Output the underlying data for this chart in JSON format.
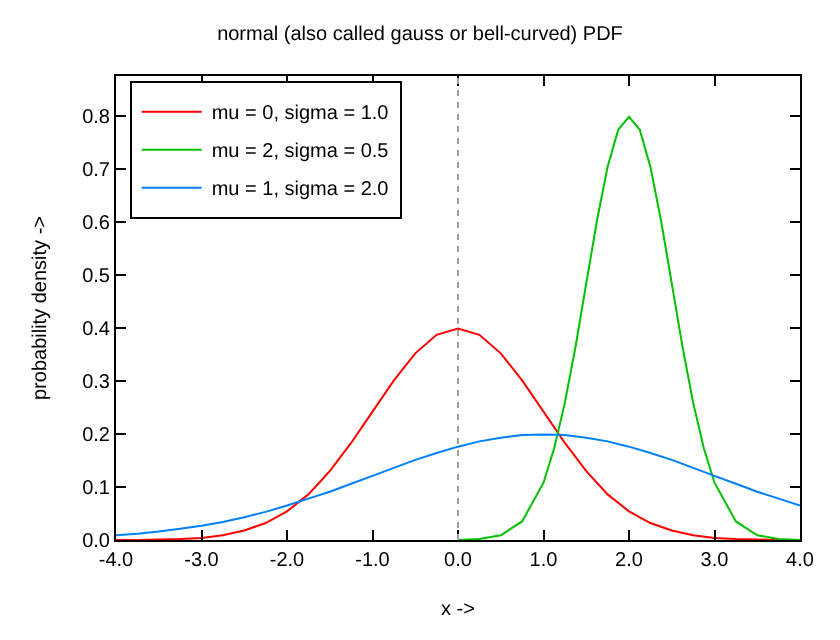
{
  "chart_data": {
    "type": "line",
    "title": "normal (also called gauss or bell-curved) PDF",
    "xlabel": "x ->",
    "ylabel": "probability density ->",
    "x": [
      -4,
      -3.75,
      -3.5,
      -3.25,
      -3,
      -2.75,
      -2.5,
      -2.25,
      -2,
      -1.75,
      -1.5,
      -1.25,
      -1,
      -0.75,
      -0.5,
      -0.25,
      0,
      0.25,
      0.5,
      0.75,
      1,
      1.25,
      1.5,
      1.75,
      2,
      2.25,
      2.5,
      2.75,
      3,
      3.25,
      3.5,
      3.75,
      4
    ],
    "series": [
      {
        "name": "mu = 0, sigma = 1.0",
        "color": "#ff0000",
        "values": [
          0.0,
          0.0,
          0.001,
          0.002,
          0.004,
          0.009,
          0.018,
          0.032,
          0.054,
          0.086,
          0.13,
          0.183,
          0.242,
          0.301,
          0.352,
          0.387,
          0.399,
          0.387,
          0.352,
          0.301,
          0.242,
          0.183,
          0.13,
          0.086,
          0.054,
          0.032,
          0.018,
          0.009,
          0.004,
          0.002,
          0.001,
          0.0,
          0.0
        ]
      },
      {
        "name": "mu = 2, sigma = 0.5",
        "color": "#00c000",
        "x": [
          0,
          0.25,
          0.5,
          0.75,
          1,
          1.125,
          1.25,
          1.375,
          1.5,
          1.625,
          1.75,
          1.875,
          2,
          2.125,
          2.25,
          2.375,
          2.5,
          2.625,
          2.75,
          2.875,
          3,
          3.25,
          3.5,
          3.75,
          4
        ],
        "values": [
          0.0,
          0.002,
          0.009,
          0.035,
          0.108,
          0.173,
          0.259,
          0.365,
          0.484,
          0.602,
          0.704,
          0.774,
          0.798,
          0.774,
          0.704,
          0.602,
          0.484,
          0.365,
          0.259,
          0.173,
          0.108,
          0.035,
          0.009,
          0.002,
          0.0
        ]
      },
      {
        "name": "mu = 1, sigma = 2.0",
        "color": "#0080ff",
        "values": [
          0.009,
          0.012,
          0.016,
          0.021,
          0.027,
          0.034,
          0.043,
          0.053,
          0.065,
          0.078,
          0.091,
          0.106,
          0.121,
          0.136,
          0.151,
          0.164,
          0.176,
          0.186,
          0.193,
          0.198,
          0.199,
          0.198,
          0.193,
          0.186,
          0.176,
          0.164,
          0.151,
          0.136,
          0.121,
          0.106,
          0.091,
          0.078,
          0.065
        ]
      }
    ],
    "xlim": [
      -4,
      4
    ],
    "xticks": [
      {
        "value": -4,
        "label": "-4.0"
      },
      {
        "value": -3,
        "label": "-3.0"
      },
      {
        "value": -2,
        "label": "-2.0"
      },
      {
        "value": -1,
        "label": "-1.0"
      },
      {
        "value": 0,
        "label": "0.0"
      },
      {
        "value": 1,
        "label": "1.0"
      },
      {
        "value": 2,
        "label": "2.0"
      },
      {
        "value": 3,
        "label": "3.0"
      },
      {
        "value": 4,
        "label": "4.0"
      }
    ],
    "ylim": [
      0,
      0.875
    ],
    "yticks": [
      {
        "value": 0,
        "label": "0.0"
      },
      0.1,
      0.2,
      0.3,
      0.4,
      0.5,
      0.6,
      0.7,
      0.8
    ],
    "ref_lines": [
      {
        "axis": "x",
        "value": 0,
        "color": "#a0a0a0",
        "line_style": "dotted"
      }
    ],
    "legend": "top left",
    "marker": "none",
    "line_style": "solid"
  }
}
